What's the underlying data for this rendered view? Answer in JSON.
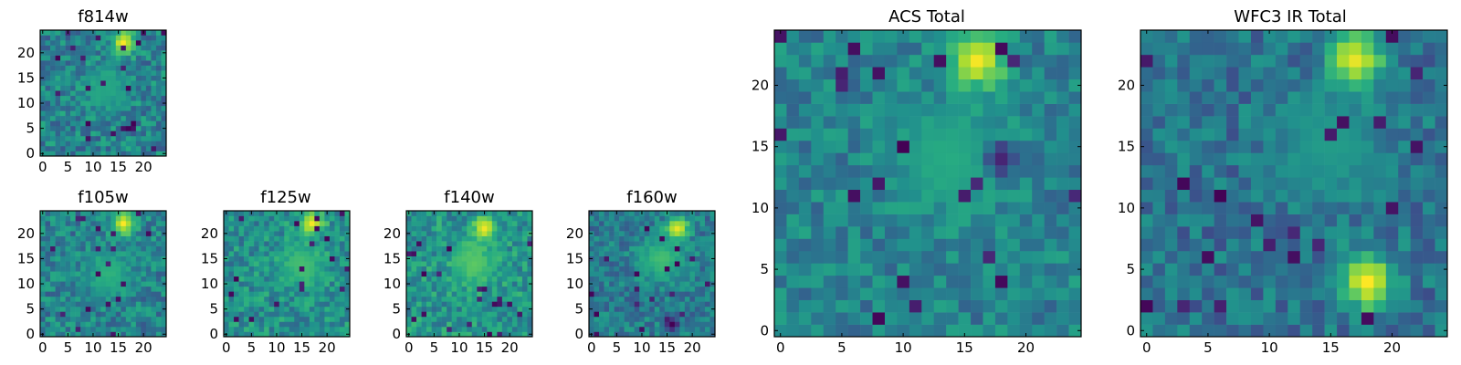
{
  "figure": {
    "panels": [
      {
        "key": "f814w",
        "title": "f814w"
      },
      {
        "key": "f105w",
        "title": "f105w"
      },
      {
        "key": "f125w",
        "title": "f125w"
      },
      {
        "key": "f140w",
        "title": "f140w"
      },
      {
        "key": "f160w",
        "title": "f160w"
      },
      {
        "key": "acs_total",
        "title": "ACS Total"
      },
      {
        "key": "wfc3_ir_total",
        "title": "WFC3 IR Total"
      }
    ]
  },
  "chart_data": [
    {
      "type": "heatmap",
      "title": "f814w",
      "colormap": "viridis",
      "grid_size": [
        25,
        25
      ],
      "xlim": [
        -0.5,
        24.5
      ],
      "ylim": [
        -0.5,
        24.5
      ],
      "x_ticks": [
        "0",
        "5",
        "10",
        "15",
        "20"
      ],
      "y_ticks": [
        "0",
        "5",
        "10",
        "15",
        "20"
      ],
      "features": [
        {
          "description": "bright source",
          "x": 16,
          "y": 22,
          "level": 1.0
        },
        {
          "description": "faint extended emission",
          "x": 13,
          "y": 13,
          "level": 0.6
        }
      ],
      "background_level": 0.45,
      "noise": 0.18
    },
    {
      "type": "heatmap",
      "title": "f105w",
      "colormap": "viridis",
      "grid_size": [
        25,
        25
      ],
      "xlim": [
        -0.5,
        24.5
      ],
      "ylim": [
        -0.5,
        24.5
      ],
      "x_ticks": [
        "0",
        "5",
        "10",
        "15",
        "20"
      ],
      "y_ticks": [
        "0",
        "5",
        "10",
        "15",
        "20"
      ],
      "features": [
        {
          "description": "bright source",
          "x": 16,
          "y": 22,
          "level": 1.0
        },
        {
          "description": "faint extended emission",
          "x": 13,
          "y": 12,
          "level": 0.65
        }
      ],
      "background_level": 0.45,
      "noise": 0.17
    },
    {
      "type": "heatmap",
      "title": "f125w",
      "colormap": "viridis",
      "grid_size": [
        25,
        25
      ],
      "xlim": [
        -0.5,
        24.5
      ],
      "ylim": [
        -0.5,
        24.5
      ],
      "x_ticks": [
        "0",
        "5",
        "10",
        "15",
        "20"
      ],
      "y_ticks": [
        "0",
        "5",
        "10",
        "15",
        "20"
      ],
      "features": [
        {
          "description": "bright source",
          "x": 17,
          "y": 22,
          "level": 1.0
        },
        {
          "description": "faint extended emission",
          "x": 15,
          "y": 14,
          "level": 0.7
        }
      ],
      "background_level": 0.5,
      "noise": 0.16
    },
    {
      "type": "heatmap",
      "title": "f140w",
      "colormap": "viridis",
      "grid_size": [
        25,
        25
      ],
      "xlim": [
        -0.5,
        24.5
      ],
      "ylim": [
        -0.5,
        24.5
      ],
      "x_ticks": [
        "0",
        "5",
        "10",
        "15",
        "20"
      ],
      "y_ticks": [
        "0",
        "5",
        "10",
        "15",
        "20"
      ],
      "features": [
        {
          "description": "bright source",
          "x": 15,
          "y": 21,
          "level": 1.0
        },
        {
          "description": "extended emission",
          "x": 13,
          "y": 14,
          "level": 0.75
        }
      ],
      "background_level": 0.52,
      "noise": 0.16
    },
    {
      "type": "heatmap",
      "title": "f160w",
      "colormap": "viridis",
      "grid_size": [
        25,
        25
      ],
      "xlim": [
        -0.5,
        24.5
      ],
      "ylim": [
        -0.5,
        24.5
      ],
      "x_ticks": [
        "0",
        "5",
        "10",
        "15",
        "20"
      ],
      "y_ticks": [
        "0",
        "5",
        "10",
        "15",
        "20"
      ],
      "features": [
        {
          "description": "bright source",
          "x": 17,
          "y": 21,
          "level": 1.0
        },
        {
          "description": "extended emission",
          "x": 14,
          "y": 15,
          "level": 0.7
        },
        {
          "description": "dark pixels",
          "x": 16,
          "y": 2,
          "level": 0.0
        }
      ],
      "background_level": 0.42,
      "noise": 0.15
    },
    {
      "type": "heatmap",
      "title": "ACS Total",
      "colormap": "viridis",
      "grid_size": [
        25,
        25
      ],
      "xlim": [
        -0.5,
        24.5
      ],
      "ylim": [
        -0.5,
        24.5
      ],
      "x_ticks": [
        "0",
        "5",
        "10",
        "15",
        "20"
      ],
      "y_ticks": [
        "0",
        "5",
        "10",
        "15",
        "20"
      ],
      "features": [
        {
          "description": "bright source",
          "x": 16,
          "y": 22,
          "level": 1.0
        },
        {
          "description": "extended emission",
          "x": 14,
          "y": 14,
          "level": 0.62
        },
        {
          "description": "dark pixels",
          "x": 18,
          "y": 14,
          "level": 0.0
        }
      ],
      "background_level": 0.45,
      "noise": 0.14
    },
    {
      "type": "heatmap",
      "title": "WFC3 IR Total",
      "colormap": "viridis",
      "grid_size": [
        25,
        25
      ],
      "xlim": [
        -0.5,
        24.5
      ],
      "ylim": [
        -0.5,
        24.5
      ],
      "x_ticks": [
        "0",
        "5",
        "10",
        "15",
        "20"
      ],
      "y_ticks": [
        "0",
        "5",
        "10",
        "15",
        "20"
      ],
      "features": [
        {
          "description": "bright source",
          "x": 17,
          "y": 22,
          "level": 1.0
        },
        {
          "description": "secondary bright spot",
          "x": 18,
          "y": 4,
          "level": 1.0
        },
        {
          "description": "extended emission",
          "x": 15,
          "y": 15,
          "level": 0.55
        }
      ],
      "background_level": 0.38,
      "noise": 0.15
    }
  ]
}
